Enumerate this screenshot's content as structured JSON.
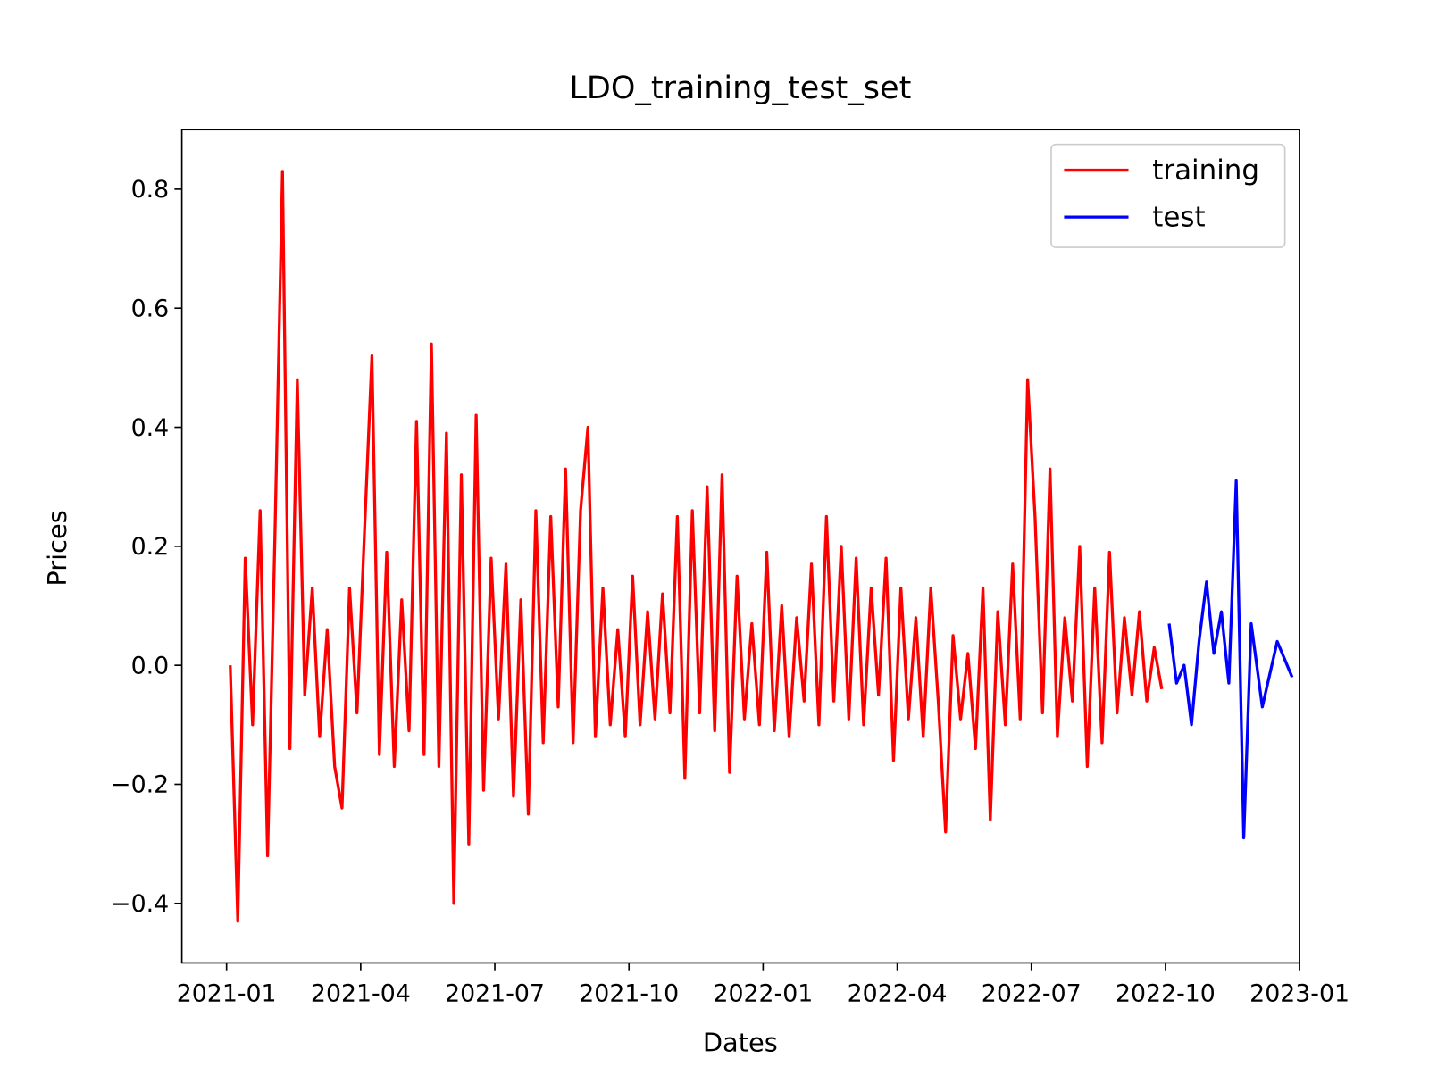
{
  "chart_data": {
    "type": "line",
    "title": "LDO_training_test_set",
    "x_label": "Dates",
    "y_label": "Prices",
    "x": [
      "2021-01",
      "2021-01",
      "2021-01",
      "2021-01",
      "2021-01",
      "2021-01",
      "2021-02",
      "2021-02",
      "2021-02",
      "2021-02",
      "2021-02",
      "2021-02",
      "2021-03",
      "2021-03",
      "2021-03",
      "2021-03",
      "2021-03",
      "2021-03",
      "2021-04",
      "2021-04",
      "2021-04",
      "2021-04",
      "2021-04",
      "2021-04",
      "2021-05",
      "2021-05",
      "2021-05",
      "2021-05",
      "2021-05",
      "2021-05",
      "2021-06",
      "2021-06",
      "2021-06",
      "2021-06",
      "2021-06",
      "2021-06",
      "2021-07",
      "2021-07",
      "2021-07",
      "2021-07",
      "2021-07",
      "2021-07",
      "2021-08",
      "2021-08",
      "2021-08",
      "2021-08",
      "2021-08",
      "2021-08",
      "2021-09",
      "2021-09",
      "2021-09",
      "2021-09",
      "2021-09",
      "2021-09",
      "2021-10",
      "2021-10",
      "2021-10",
      "2021-10",
      "2021-10",
      "2021-10",
      "2021-11",
      "2021-11",
      "2021-11",
      "2021-11",
      "2021-11",
      "2021-11",
      "2021-12",
      "2021-12",
      "2021-12",
      "2021-12",
      "2021-12",
      "2021-12",
      "2022-01",
      "2022-01",
      "2022-01",
      "2022-01",
      "2022-01",
      "2022-01",
      "2022-02",
      "2022-02",
      "2022-02",
      "2022-02",
      "2022-02",
      "2022-02",
      "2022-03",
      "2022-03",
      "2022-03",
      "2022-03",
      "2022-03",
      "2022-03",
      "2022-04",
      "2022-04",
      "2022-04",
      "2022-04",
      "2022-04",
      "2022-04",
      "2022-05",
      "2022-05",
      "2022-05",
      "2022-05",
      "2022-05",
      "2022-05",
      "2022-06",
      "2022-06",
      "2022-06",
      "2022-06",
      "2022-06",
      "2022-06",
      "2022-07",
      "2022-07",
      "2022-07",
      "2022-07",
      "2022-07",
      "2022-07",
      "2022-08",
      "2022-08",
      "2022-08",
      "2022-08",
      "2022-08",
      "2022-08",
      "2022-09",
      "2022-09",
      "2022-09",
      "2022-09",
      "2022-09",
      "2022-09",
      "2022-10",
      "2022-10",
      "2022-10",
      "2022-10",
      "2022-10",
      "2022-10",
      "2022-11",
      "2022-11",
      "2022-11",
      "2022-11",
      "2022-11",
      "2022-11",
      "2022-12",
      "2022-12",
      "2022-12"
    ],
    "series": [
      {
        "name": "training",
        "color": "#ff0000",
        "values": [
          0.0,
          -0.43,
          0.18,
          -0.1,
          0.26,
          -0.32,
          0.22,
          0.83,
          -0.14,
          0.48,
          -0.05,
          0.13,
          -0.12,
          0.06,
          -0.17,
          -0.24,
          0.13,
          -0.08,
          0.22,
          0.52,
          -0.15,
          0.19,
          -0.17,
          0.11,
          -0.11,
          0.41,
          -0.15,
          0.54,
          -0.17,
          0.39,
          -0.4,
          0.32,
          -0.3,
          0.42,
          -0.21,
          0.18,
          -0.09,
          0.17,
          -0.22,
          0.11,
          -0.25,
          0.26,
          -0.13,
          0.25,
          -0.07,
          0.33,
          -0.13,
          0.26,
          0.4,
          -0.12,
          0.13,
          -0.1,
          0.06,
          -0.12,
          0.15,
          -0.1,
          0.09,
          -0.09,
          0.12,
          -0.08,
          0.25,
          -0.19,
          0.26,
          -0.08,
          0.3,
          -0.11,
          0.32,
          -0.18,
          0.15,
          -0.09,
          0.07,
          -0.1,
          0.19,
          -0.11,
          0.1,
          -0.12,
          0.08,
          -0.06,
          0.17,
          -0.1,
          0.25,
          -0.06,
          0.2,
          -0.09,
          0.18,
          -0.1,
          0.13,
          -0.05,
          0.18,
          -0.16,
          0.13,
          -0.09,
          0.08,
          -0.12,
          0.13,
          -0.06,
          -0.28,
          0.05,
          -0.09,
          0.02,
          -0.14,
          0.13,
          -0.26,
          0.09,
          -0.1,
          0.17,
          -0.09,
          0.48,
          0.25,
          -0.08,
          0.33,
          -0.12,
          0.08,
          -0.06,
          0.2,
          -0.17,
          0.13,
          -0.13,
          0.19,
          -0.08,
          0.08,
          -0.05,
          0.09,
          -0.06,
          0.03,
          -0.04,
          null,
          null,
          null,
          null,
          null,
          null,
          null,
          null,
          null,
          null,
          null,
          null,
          null,
          null,
          null
        ]
      },
      {
        "name": "test",
        "color": "#0000ff",
        "values": [
          null,
          null,
          null,
          null,
          null,
          null,
          null,
          null,
          null,
          null,
          null,
          null,
          null,
          null,
          null,
          null,
          null,
          null,
          null,
          null,
          null,
          null,
          null,
          null,
          null,
          null,
          null,
          null,
          null,
          null,
          null,
          null,
          null,
          null,
          null,
          null,
          null,
          null,
          null,
          null,
          null,
          null,
          null,
          null,
          null,
          null,
          null,
          null,
          null,
          null,
          null,
          null,
          null,
          null,
          null,
          null,
          null,
          null,
          null,
          null,
          null,
          null,
          null,
          null,
          null,
          null,
          null,
          null,
          null,
          null,
          null,
          null,
          null,
          null,
          null,
          null,
          null,
          null,
          null,
          null,
          null,
          null,
          null,
          null,
          null,
          null,
          null,
          null,
          null,
          null,
          null,
          null,
          null,
          null,
          null,
          null,
          null,
          null,
          null,
          null,
          null,
          null,
          null,
          null,
          null,
          null,
          null,
          null,
          null,
          null,
          null,
          null,
          null,
          null,
          null,
          null,
          null,
          null,
          null,
          null,
          null,
          null,
          null,
          null,
          null,
          null,
          0.07,
          -0.03,
          0.0,
          -0.1,
          0.04,
          0.14,
          0.02,
          0.09,
          -0.03,
          0.31,
          -0.29,
          0.07,
          -0.07,
          0.04,
          -0.02
        ]
      }
    ],
    "xlim": [
      "2020-12",
      "2023-01"
    ],
    "xticks": [
      "2021-01",
      "2021-04",
      "2021-07",
      "2021-10",
      "2022-01",
      "2022-04",
      "2022-07",
      "2022-10",
      "2023-01"
    ],
    "ylim": [
      -0.5,
      0.9
    ],
    "yticks": [
      {
        "value": -0.4,
        "label": "−0.4"
      },
      {
        "value": -0.2,
        "label": "−0.2"
      },
      {
        "value": 0,
        "label": "0.0"
      },
      0.2,
      0.4,
      0.6,
      0.8
    ],
    "grid": false,
    "legend": "upper right"
  }
}
